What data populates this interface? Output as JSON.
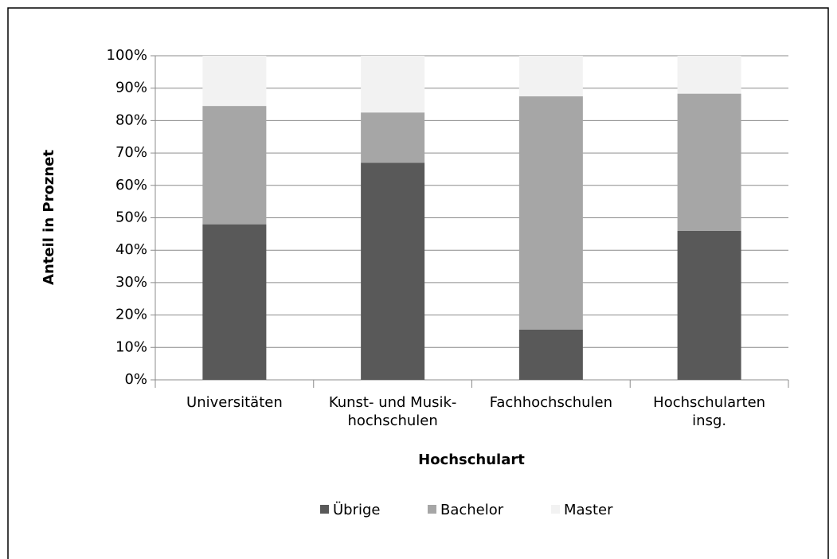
{
  "chart_data": {
    "type": "stacked_bar",
    "y_label": "Anteil in Proznet",
    "x_label": "Hochschulart",
    "categories": [
      "Universitäten",
      "Kunst- und Musik-\nhochschulen",
      "Fachhochschulen",
      "Hochschularten\ninsg."
    ],
    "series": [
      {
        "name": "Übrige",
        "color": "#595959",
        "values": [
          48,
          67,
          15.5,
          46
        ]
      },
      {
        "name": "Bachelor",
        "color": "#a6a6a6",
        "values": [
          36.5,
          15.5,
          72,
          42.3
        ]
      },
      {
        "name": "Master",
        "color": "#f2f2f2",
        "values": [
          15.5,
          17.5,
          12.5,
          11.7
        ]
      }
    ],
    "ylim": [
      0,
      100
    ],
    "yticks": [
      {
        "value": 0,
        "label": "0%"
      },
      {
        "value": 10,
        "label": "10%"
      },
      {
        "value": 20,
        "label": "20%"
      },
      {
        "value": 30,
        "label": "30%"
      },
      {
        "value": 40,
        "label": "40%"
      },
      {
        "value": 50,
        "label": "50%"
      },
      {
        "value": 60,
        "label": "60%"
      },
      {
        "value": 70,
        "label": "70%"
      },
      {
        "value": 80,
        "label": "80%"
      },
      {
        "value": 90,
        "label": "90%"
      },
      {
        "value": 100,
        "label": "100%"
      }
    ],
    "grid": true,
    "legend": "bottom"
  }
}
